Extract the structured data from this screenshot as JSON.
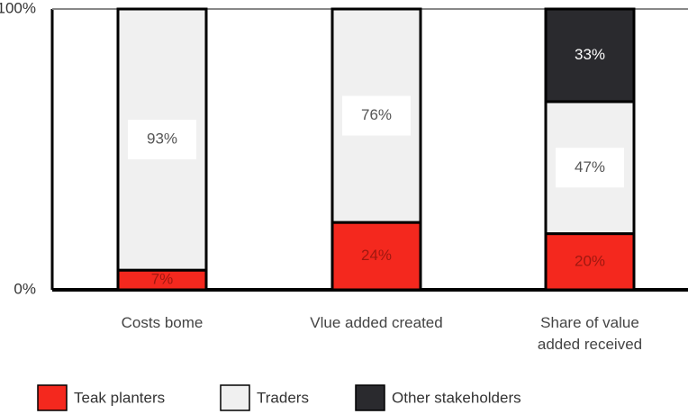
{
  "chart_data": {
    "type": "stacked-bar",
    "categories": [
      "Costs bome",
      "Vlue added created",
      "Share of value added received"
    ],
    "series": [
      {
        "name": "Teak planters",
        "color": "#f4281e",
        "values": [
          7,
          24,
          20
        ],
        "value_labels": [
          "7%",
          "24%",
          "20%"
        ]
      },
      {
        "name": "Traders",
        "color": "#f0f0f0",
        "values": [
          93,
          76,
          47
        ],
        "value_labels": [
          "93%",
          "76%",
          "47%"
        ]
      },
      {
        "name": "Other stakeholders",
        "color": "#2a2a2e",
        "values": [
          null,
          null,
          33
        ],
        "value_labels": [
          null,
          null,
          "33%"
        ]
      }
    ],
    "ylim": [
      0,
      100
    ],
    "yticks": [
      {
        "value": 0,
        "label": "0%"
      },
      {
        "value": 100,
        "label": "100%"
      }
    ]
  }
}
